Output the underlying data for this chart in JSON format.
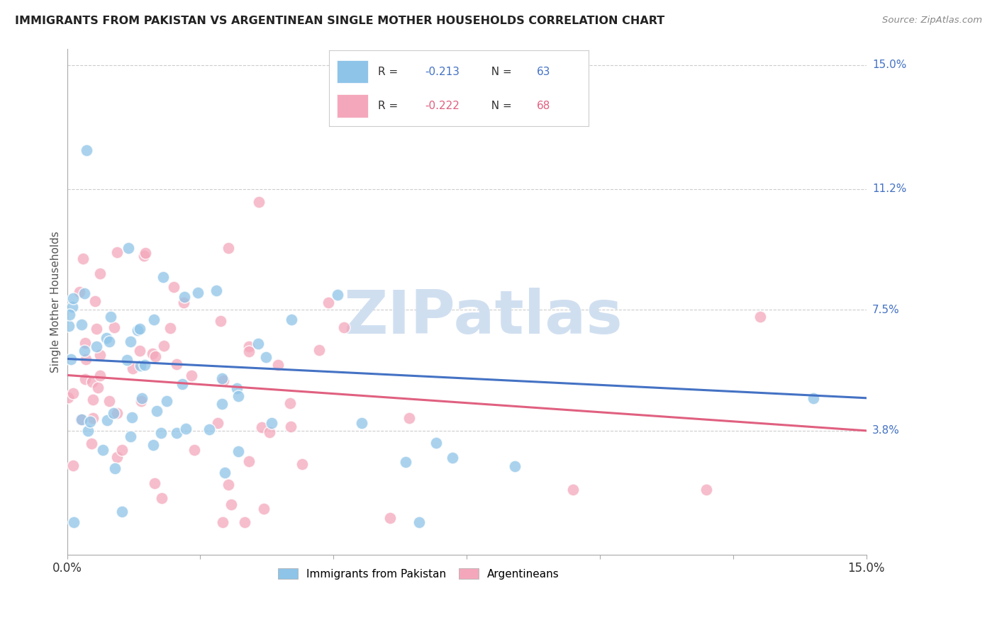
{
  "title": "IMMIGRANTS FROM PAKISTAN VS ARGENTINEAN SINGLE MOTHER HOUSEHOLDS CORRELATION CHART",
  "source": "Source: ZipAtlas.com",
  "ylabel": "Single Mother Households",
  "y_tick_values": [
    0.038,
    0.075,
    0.112,
    0.15
  ],
  "y_tick_labels": [
    "3.8%",
    "7.5%",
    "11.2%",
    "15.0%"
  ],
  "xmin": 0.0,
  "xmax": 0.15,
  "ymin": 0.0,
  "ymax": 0.155,
  "color_blue": "#8ec4e8",
  "color_pink": "#f4a7bb",
  "color_blue_line": "#4472c4",
  "color_pink_line": "#e06080",
  "color_blue_text": "#4472c4",
  "color_pink_text": "#e06080",
  "watermark_color": "#d0dff0",
  "blue_line_x0": 0.0,
  "blue_line_y0": 0.06,
  "blue_line_x1": 0.15,
  "blue_line_y1": 0.048,
  "pink_line_x0": 0.0,
  "pink_line_y0": 0.055,
  "pink_line_x1": 0.15,
  "pink_line_y1": 0.038,
  "seed": 12
}
